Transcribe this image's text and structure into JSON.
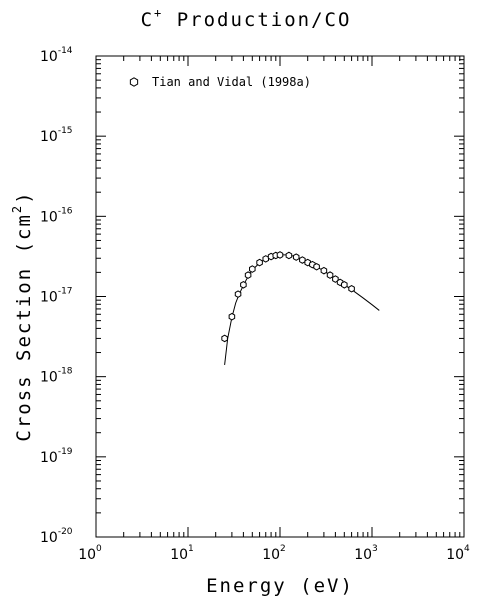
{
  "chart_data": {
    "type": "scatter",
    "title": {
      "base": "C",
      "sup": "+",
      "rest": " Production/CO"
    },
    "xlabel": "Energy (eV)",
    "ylabel": {
      "base": "Cross Section (cm",
      "sup": "2",
      "rest": ")"
    },
    "x_scale": "log",
    "y_scale": "log",
    "xlim": [
      1,
      10000
    ],
    "ylim": [
      1e-20,
      1e-14
    ],
    "x_ticks": [
      {
        "base": "10",
        "exp": "0"
      },
      {
        "base": "10",
        "exp": "1"
      },
      {
        "base": "10",
        "exp": "2"
      },
      {
        "base": "10",
        "exp": "3"
      },
      {
        "base": "10",
        "exp": "4"
      }
    ],
    "y_ticks": [
      {
        "base": "10",
        "exp": "-20"
      },
      {
        "base": "10",
        "exp": "-19"
      },
      {
        "base": "10",
        "exp": "-18"
      },
      {
        "base": "10",
        "exp": "-17"
      },
      {
        "base": "10",
        "exp": "-16"
      },
      {
        "base": "10",
        "exp": "-15"
      },
      {
        "base": "10",
        "exp": "-14"
      }
    ],
    "grid": false,
    "legend_position": "top-left",
    "series": [
      {
        "name": "Tian and Vidal (1998a)",
        "marker": "hexagon",
        "x": [
          25,
          30,
          35,
          40,
          45,
          50,
          60,
          70,
          80,
          90,
          100,
          125,
          150,
          175,
          200,
          225,
          250,
          300,
          350,
          400,
          450,
          500,
          600
        ],
        "y": [
          3e-18,
          5.6e-18,
          1.07e-17,
          1.4e-17,
          1.85e-17,
          2.2e-17,
          2.65e-17,
          2.95e-17,
          3.15e-17,
          3.25e-17,
          3.3e-17,
          3.25e-17,
          3.1e-17,
          2.85e-17,
          2.65e-17,
          2.5e-17,
          2.35e-17,
          2.1e-17,
          1.85e-17,
          1.65e-17,
          1.5e-17,
          1.4e-17,
          1.25e-17
        ]
      }
    ],
    "fit_curve": {
      "x": [
        25,
        27,
        30,
        33,
        36,
        40,
        45,
        50,
        60,
        70,
        80,
        90,
        100,
        120,
        150,
        200,
        250,
        300,
        400,
        500,
        600,
        800,
        1000,
        1200
      ],
      "y": [
        1.4e-18,
        3e-18,
        5.5e-18,
        8.3e-18,
        1.07e-17,
        1.38e-17,
        1.78e-17,
        2.15e-17,
        2.62e-17,
        2.95e-17,
        3.15e-17,
        3.25e-17,
        3.3e-17,
        3.3e-17,
        3.15e-17,
        2.7e-17,
        2.35e-17,
        2.08e-17,
        1.68e-17,
        1.4e-17,
        1.22e-17,
        9.6e-18,
        7.9e-18,
        6.7e-18
      ]
    }
  }
}
